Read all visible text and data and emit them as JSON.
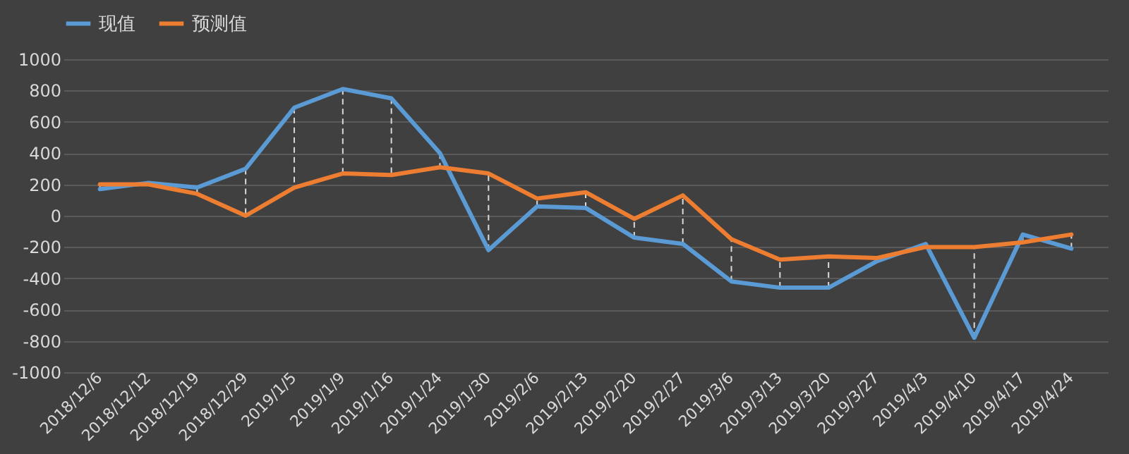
{
  "chart_data": {
    "type": "line",
    "categories": [
      "2018/12/6",
      "2018/12/12",
      "2018/12/19",
      "2018/12/29",
      "2019/1/5",
      "2019/1/9",
      "2019/1/16",
      "2019/1/24",
      "2019/1/30",
      "2019/2/6",
      "2019/2/13",
      "2019/2/20",
      "2019/2/27",
      "2019/3/6",
      "2019/3/13",
      "2019/3/20",
      "2019/3/27",
      "2019/4/3",
      "2019/4/10",
      "2019/4/17",
      "2019/4/24"
    ],
    "series": [
      {
        "name": "现值",
        "color": "#5b9bd5",
        "values": [
          170,
          210,
          180,
          300,
          690,
          810,
          750,
          400,
          -220,
          60,
          50,
          -140,
          -180,
          -420,
          -460,
          -460,
          -290,
          -180,
          -780,
          -120,
          -210
        ]
      },
      {
        "name": "预测值",
        "color": "#ed7d31",
        "values": [
          200,
          200,
          140,
          0,
          180,
          270,
          260,
          310,
          270,
          110,
          150,
          -20,
          130,
          -150,
          -280,
          -260,
          -270,
          -200,
          -200,
          -170,
          -120
        ]
      }
    ],
    "ylim": [
      -1000,
      1000
    ],
    "yticks": [
      -1000,
      -800,
      -600,
      -400,
      -200,
      0,
      200,
      400,
      600,
      800,
      1000
    ],
    "grid": "y",
    "legend": "top",
    "line_style": "solid",
    "marker": "none"
  }
}
